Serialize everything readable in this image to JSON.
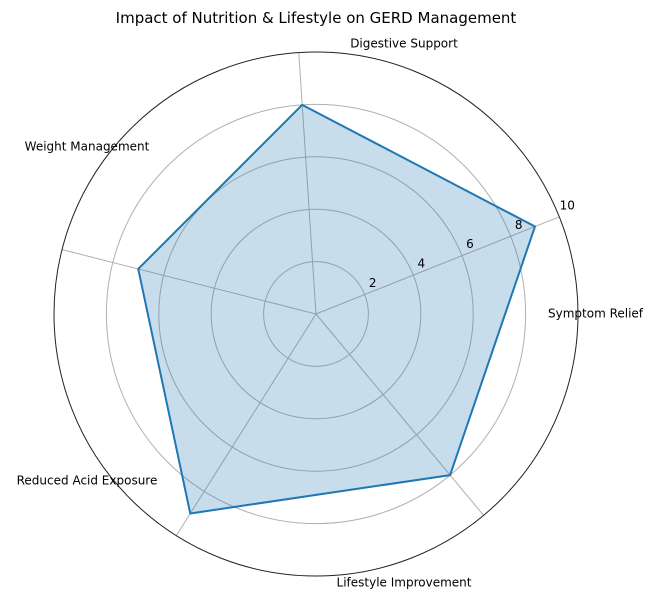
{
  "chart_data": {
    "type": "radar",
    "title": "Impact of Nutrition & Lifestyle on GERD Management",
    "categories": [
      "Symptom Relief",
      "Digestive Support",
      "Weight Management",
      "Reduced Acid Exposure",
      "Lifestyle Improvement"
    ],
    "values": [
      9,
      8,
      7,
      9,
      8
    ],
    "rlim": [
      0,
      10
    ],
    "radial_ticks": [
      2,
      4,
      6,
      8,
      10
    ],
    "grid": true,
    "colors": {
      "line": "#1f77b4",
      "fill": "#1f77b4",
      "grid": "#b0b0b0",
      "outer_ring": "#222222"
    }
  }
}
